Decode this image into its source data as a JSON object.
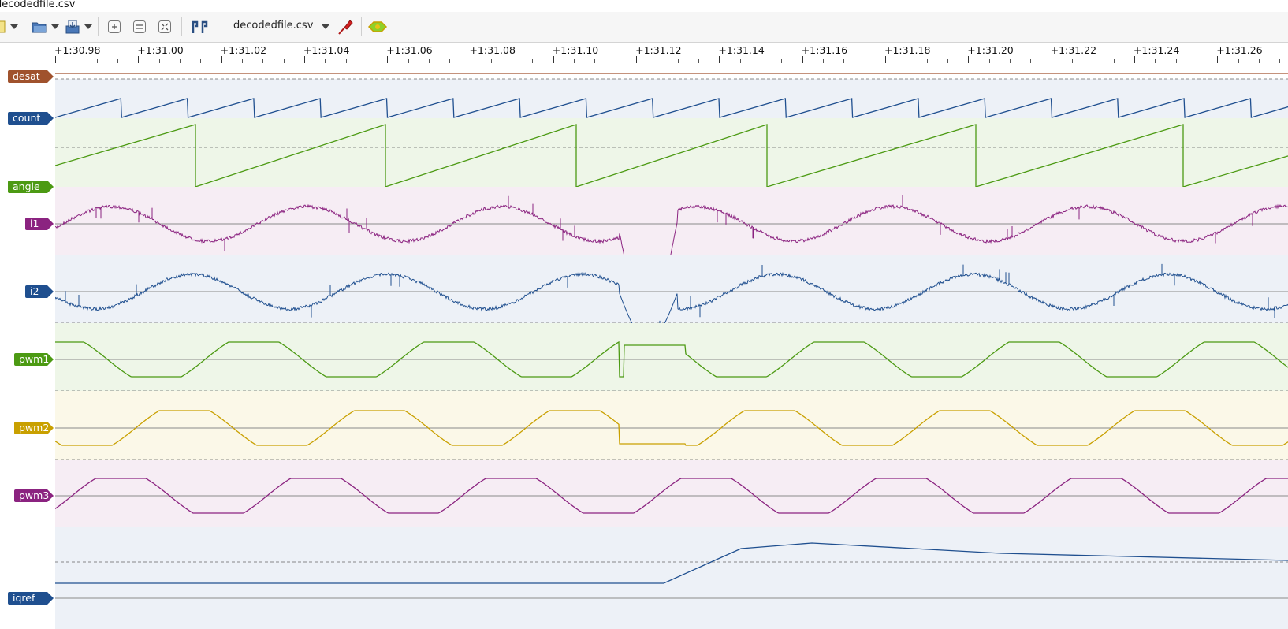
{
  "window": {
    "title": "decodedfile.csv"
  },
  "toolbar": {
    "session_name": "decodedfile.csv",
    "icons": [
      "new-session-icon",
      "dropdown-arrow-icon",
      "open-file-icon",
      "dropdown-arrow-icon",
      "save-icon",
      "dropdown-arrow-icon",
      "zoom-in-icon",
      "zoom-out-icon",
      "zoom-fit-icon",
      "cursor-icon",
      "session-dropdown-icon",
      "probe-icon",
      "decoder-icon"
    ]
  },
  "ruler": {
    "labels": [
      "+1:30.98",
      "+1:31.00",
      "+1:31.02",
      "+1:31.04",
      "+1:31.06",
      "+1:31.08",
      "+1:31.10",
      "+1:31.12",
      "+1:31.14",
      "+1:31.16",
      "+1:31.18",
      "+1:31.20",
      "+1:31.22",
      "+1:31.24",
      "+1:31.26"
    ]
  },
  "signals": [
    {
      "name": "desat",
      "color": "#a0522d",
      "bg": "#ffffff",
      "kind": "logic-low"
    },
    {
      "name": "count",
      "color": "#1f4f8f",
      "bg": "#edf1f7",
      "kind": "sawtooth-fast"
    },
    {
      "name": "angle",
      "color": "#4c9a13",
      "bg": "#eef6e8",
      "kind": "sawtooth"
    },
    {
      "name": "i1",
      "color": "#8b2380",
      "bg": "#f6edf4",
      "kind": "current-1"
    },
    {
      "name": "i2",
      "color": "#1f4f8f",
      "bg": "#edf1f7",
      "kind": "current-2"
    },
    {
      "name": "pwm1",
      "color": "#4c9a13",
      "bg": "#eef6e8",
      "kind": "pwm-1"
    },
    {
      "name": "pwm2",
      "color": "#c9a000",
      "bg": "#fbf8e8",
      "kind": "pwm-2"
    },
    {
      "name": "pwm3",
      "color": "#8b2380",
      "bg": "#f6edf4",
      "kind": "pwm-3"
    },
    {
      "name": "iqref",
      "color": "#1f4f8f",
      "bg": "#edf1f7",
      "kind": "ramp"
    }
  ]
}
